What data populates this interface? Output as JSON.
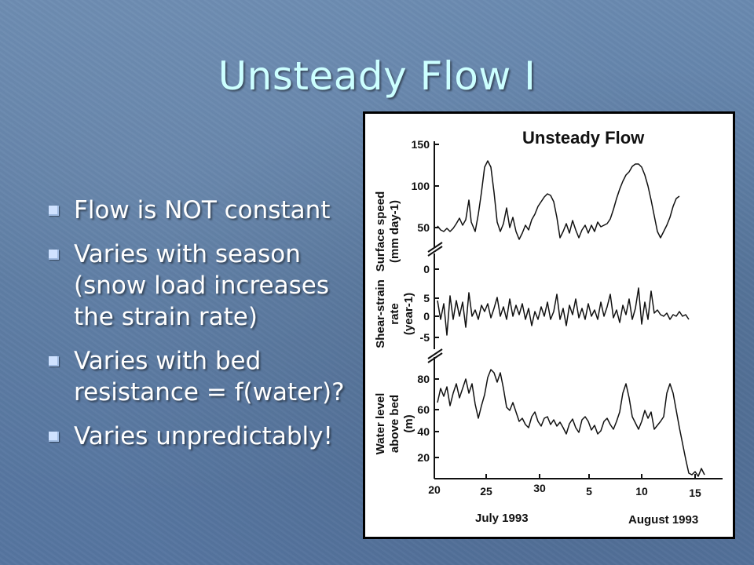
{
  "slide": {
    "title": "Unsteady Flow I",
    "bullets": [
      "Flow is NOT constant",
      "Varies with season (snow load increases the strain rate)",
      "Varies with bed resistance = f(water)?",
      "Varies unpredictably!"
    ]
  },
  "figure": {
    "title": "Unsteady Flow",
    "panels": [
      {
        "ylabel_line1": "Surface speed",
        "ylabel_line2": "(mm day-1)",
        "ticks": [
          "150",
          "100",
          "50"
        ]
      },
      {
        "ylabel_line1": "Shear-strain",
        "ylabel_line2": "rate",
        "ylabel_line3": "(year-1)",
        "ticks": [
          "0",
          "5",
          "0",
          "-5"
        ]
      },
      {
        "ylabel_line1": "Water level",
        "ylabel_line2": "above bed",
        "ylabel_line3": "(m)",
        "ticks": [
          "80",
          "60",
          "40",
          "20"
        ]
      }
    ],
    "xticks": [
      "20",
      "25",
      "30",
      "5",
      "10",
      "15"
    ],
    "month1": "July 1993",
    "month2": "August 1993"
  },
  "colors": {
    "title": "#ccffff",
    "text": "#ffffff",
    "background": "#5f7fa6"
  }
}
